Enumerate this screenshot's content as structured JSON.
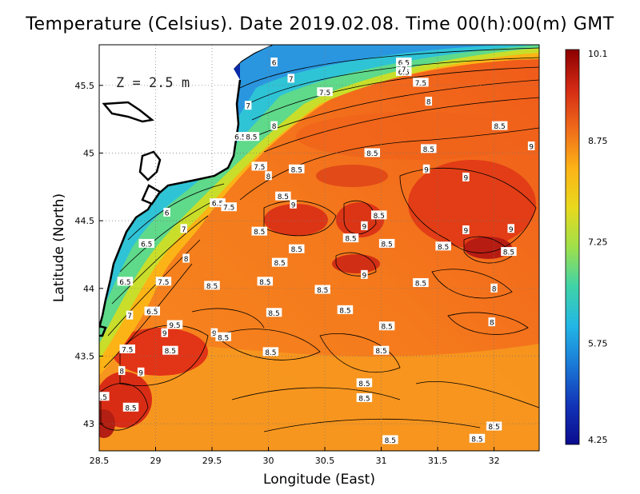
{
  "title": "Temperature (Celsius). Date 2019.02.08. Time 00(h):00(m)  GMT",
  "depth_label": "Z = 2.5 m",
  "x_axis": {
    "label": "Longitude (East)",
    "range": [
      28.5,
      32.4
    ],
    "ticks": [
      "28.5",
      "29",
      "29.5",
      "30",
      "30.5",
      "31",
      "31.5",
      "32"
    ]
  },
  "y_axis": {
    "label": "Latitude (North)",
    "range": [
      42.8,
      45.8
    ],
    "ticks": [
      "43",
      "43.5",
      "44",
      "44.5",
      "45",
      "45.5"
    ]
  },
  "colorbar": {
    "min": 4.25,
    "max": 10.1,
    "labels": [
      "10.1",
      "8.75",
      "7.25",
      "5.75",
      "4.25"
    ],
    "colors": [
      "#8b0000",
      "#d42a14",
      "#f06a1a",
      "#fcb316",
      "#e9d91d",
      "#9fe04a",
      "#3fd3a8",
      "#22b6e6",
      "#1a78d6",
      "#1234b8",
      "#0b0b8e"
    ]
  },
  "contour_labels": [
    {
      "text": "6",
      "lon": 30.05,
      "lat": 45.67
    },
    {
      "text": "6.5",
      "lon": 31.2,
      "lat": 45.6
    },
    {
      "text": "6.5",
      "lon": 31.2,
      "lat": 45.67
    },
    {
      "text": "7",
      "lon": 31.2,
      "lat": 45.62
    },
    {
      "text": "7",
      "lon": 30.2,
      "lat": 45.55
    },
    {
      "text": "7.5",
      "lon": 30.5,
      "lat": 45.45
    },
    {
      "text": "7.5",
      "lon": 31.35,
      "lat": 45.52
    },
    {
      "text": "8",
      "lon": 31.42,
      "lat": 45.38
    },
    {
      "text": "8.5",
      "lon": 32.05,
      "lat": 45.2
    },
    {
      "text": "9",
      "lon": 32.33,
      "lat": 45.05
    },
    {
      "text": "7",
      "lon": 29.82,
      "lat": 45.35
    },
    {
      "text": "8",
      "lon": 30.05,
      "lat": 45.2
    },
    {
      "text": "6.5",
      "lon": 29.75,
      "lat": 45.12
    },
    {
      "text": "8.5",
      "lon": 29.85,
      "lat": 45.12
    },
    {
      "text": "8.5",
      "lon": 31.42,
      "lat": 45.03
    },
    {
      "text": "7.5",
      "lon": 29.92,
      "lat": 44.9
    },
    {
      "text": "8",
      "lon": 30.0,
      "lat": 44.83
    },
    {
      "text": "8.5",
      "lon": 30.25,
      "lat": 44.88
    },
    {
      "text": "8.5",
      "lon": 30.92,
      "lat": 45.0
    },
    {
      "text": "9",
      "lon": 31.4,
      "lat": 44.88
    },
    {
      "text": "9",
      "lon": 31.75,
      "lat": 44.82
    },
    {
      "text": "6.5",
      "lon": 29.55,
      "lat": 44.63
    },
    {
      "text": "7.5",
      "lon": 29.65,
      "lat": 44.6
    },
    {
      "text": "8.5",
      "lon": 30.13,
      "lat": 44.68
    },
    {
      "text": "9",
      "lon": 30.22,
      "lat": 44.62
    },
    {
      "text": "6",
      "lon": 29.1,
      "lat": 44.56
    },
    {
      "text": "8.5",
      "lon": 30.98,
      "lat": 44.54
    },
    {
      "text": "9",
      "lon": 30.85,
      "lat": 44.46
    },
    {
      "text": "9",
      "lon": 31.75,
      "lat": 44.43
    },
    {
      "text": "9",
      "lon": 32.15,
      "lat": 44.44
    },
    {
      "text": "7",
      "lon": 29.25,
      "lat": 44.44
    },
    {
      "text": "8.5",
      "lon": 29.92,
      "lat": 44.42
    },
    {
      "text": "6.5",
      "lon": 28.92,
      "lat": 44.33
    },
    {
      "text": "8.5",
      "lon": 30.73,
      "lat": 44.37
    },
    {
      "text": "8.5",
      "lon": 31.05,
      "lat": 44.33
    },
    {
      "text": "8.5",
      "lon": 31.55,
      "lat": 44.31
    },
    {
      "text": "8.5",
      "lon": 32.13,
      "lat": 44.27
    },
    {
      "text": "8.5",
      "lon": 30.25,
      "lat": 44.29
    },
    {
      "text": "8",
      "lon": 29.27,
      "lat": 44.22
    },
    {
      "text": "8.5",
      "lon": 30.1,
      "lat": 44.19
    },
    {
      "text": "9",
      "lon": 30.85,
      "lat": 44.1
    },
    {
      "text": "6.5",
      "lon": 28.73,
      "lat": 44.05
    },
    {
      "text": "7.5",
      "lon": 29.07,
      "lat": 44.05
    },
    {
      "text": "8.5",
      "lon": 29.5,
      "lat": 44.02
    },
    {
      "text": "8.5",
      "lon": 29.97,
      "lat": 44.05
    },
    {
      "text": "8.5",
      "lon": 30.48,
      "lat": 43.99
    },
    {
      "text": "8.5",
      "lon": 31.35,
      "lat": 44.04
    },
    {
      "text": "8",
      "lon": 32.0,
      "lat": 44.0
    },
    {
      "text": "7",
      "lon": 28.77,
      "lat": 43.8
    },
    {
      "text": "6.5",
      "lon": 28.97,
      "lat": 43.83
    },
    {
      "text": "8.5",
      "lon": 30.05,
      "lat": 43.82
    },
    {
      "text": "8.5",
      "lon": 30.68,
      "lat": 43.84
    },
    {
      "text": "8",
      "lon": 31.98,
      "lat": 43.75
    },
    {
      "text": "9",
      "lon": 29.08,
      "lat": 43.67
    },
    {
      "text": "9.5",
      "lon": 29.17,
      "lat": 43.73
    },
    {
      "text": "9",
      "lon": 29.52,
      "lat": 43.67
    },
    {
      "text": "8.5",
      "lon": 29.6,
      "lat": 43.64
    },
    {
      "text": "8.5",
      "lon": 31.05,
      "lat": 43.72
    },
    {
      "text": "7.5",
      "lon": 28.75,
      "lat": 43.55
    },
    {
      "text": "8.5",
      "lon": 29.13,
      "lat": 43.54
    },
    {
      "text": "8.5",
      "lon": 30.02,
      "lat": 43.53
    },
    {
      "text": "8.5",
      "lon": 31.0,
      "lat": 43.54
    },
    {
      "text": "8",
      "lon": 28.7,
      "lat": 43.39
    },
    {
      "text": "9",
      "lon": 28.87,
      "lat": 43.38
    },
    {
      "text": "8.5",
      "lon": 30.85,
      "lat": 43.3
    },
    {
      "text": "8.5",
      "lon": 28.52,
      "lat": 43.2
    },
    {
      "text": "8.5",
      "lon": 30.85,
      "lat": 43.19
    },
    {
      "text": "8.5",
      "lon": 28.78,
      "lat": 43.12
    },
    {
      "text": "8.5",
      "lon": 32.0,
      "lat": 42.98
    },
    {
      "text": "8.5",
      "lon": 31.08,
      "lat": 42.88
    },
    {
      "text": "8.5",
      "lon": 31.85,
      "lat": 42.89
    }
  ]
}
